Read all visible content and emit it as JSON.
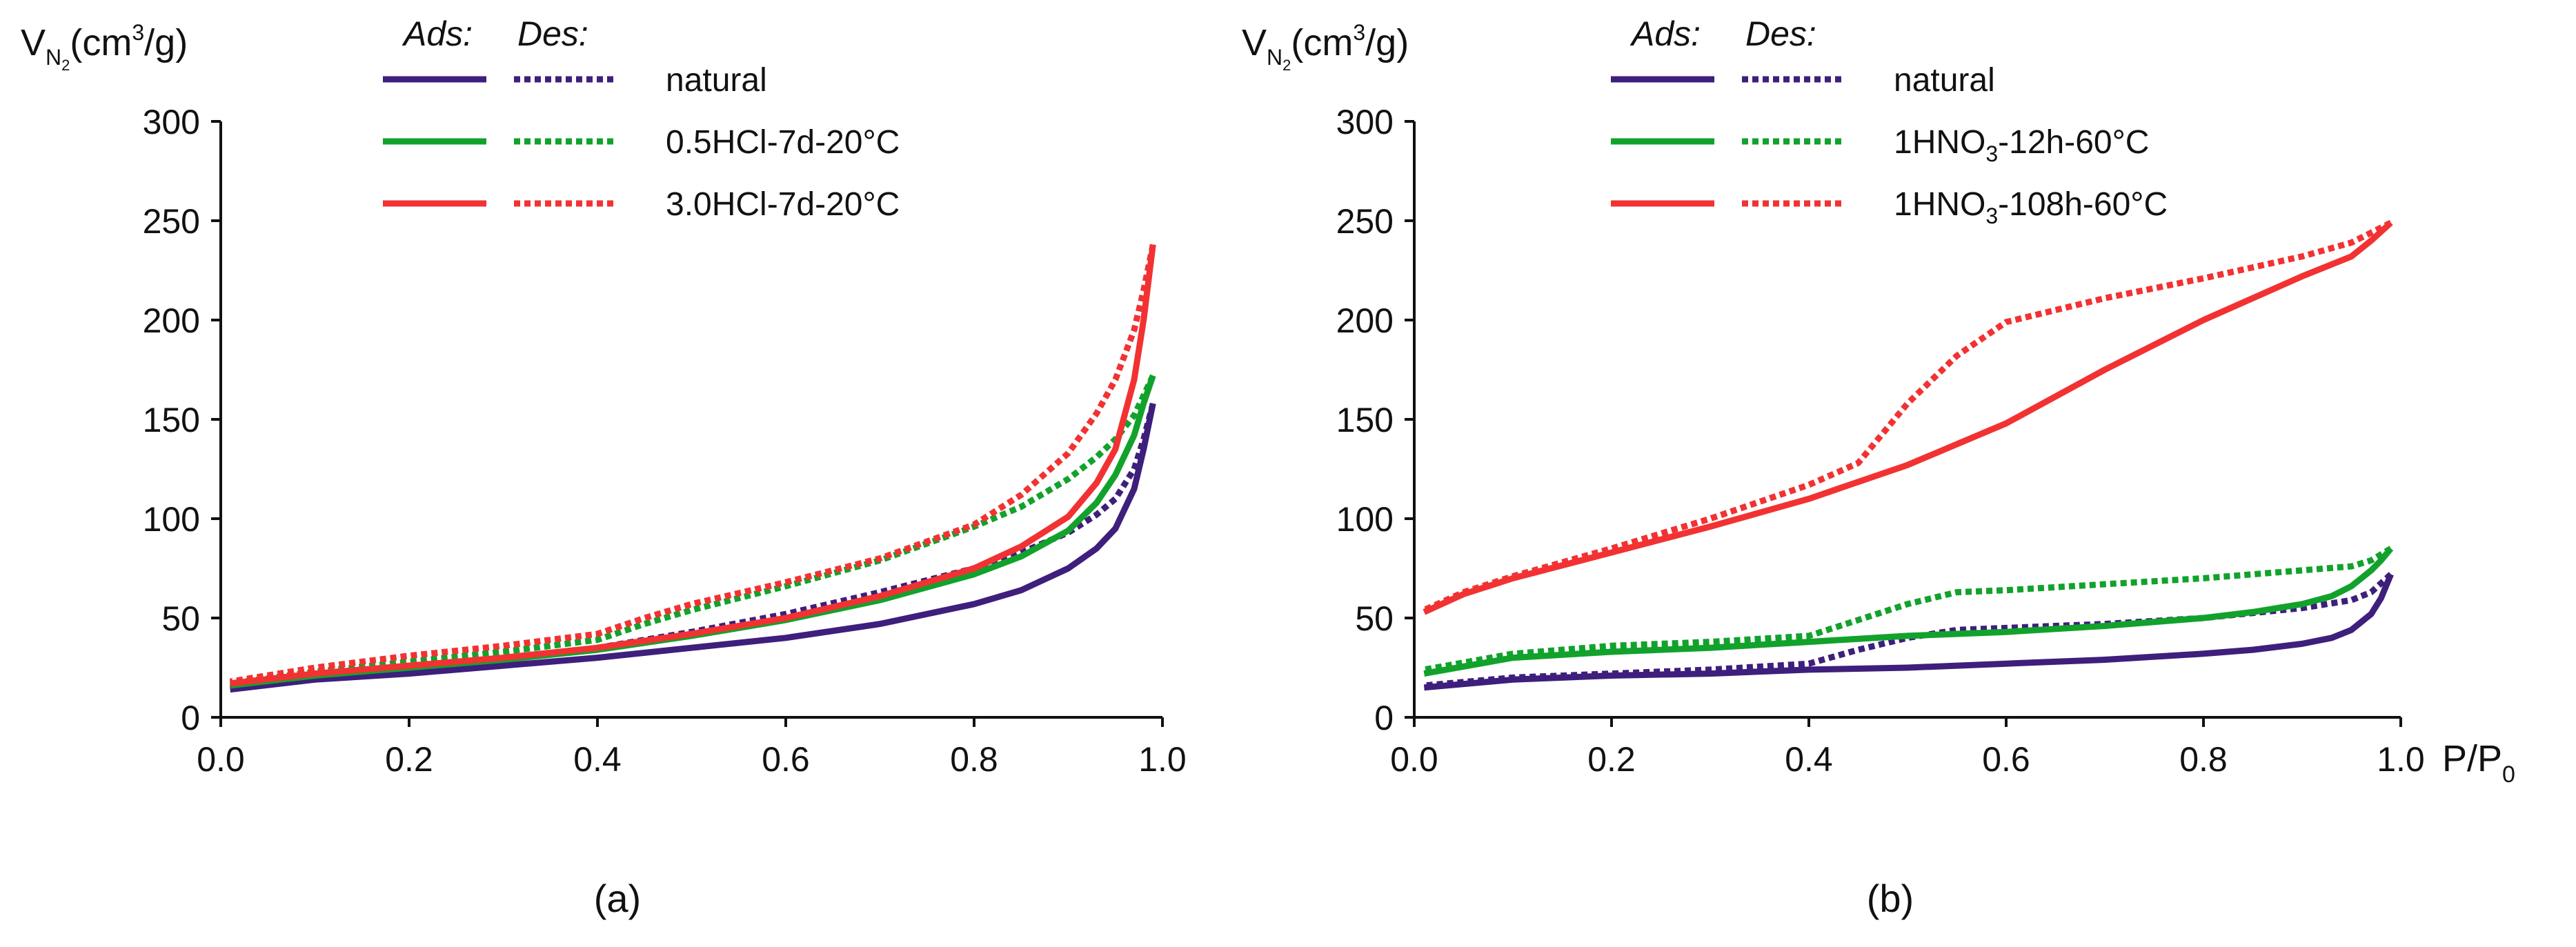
{
  "chart_data": [
    {
      "type": "line",
      "panel_label": "(a)",
      "ylabel": {
        "main": "V",
        "sub": "N",
        "subsub": "2",
        "unit_pre": "(cm",
        "unit_sup": "3",
        "unit_post": "/g)"
      },
      "xlabel": null,
      "xlim": [
        0,
        1
      ],
      "ylim": [
        0,
        300
      ],
      "xticks": [
        "0.0",
        "0.2",
        "0.4",
        "0.6",
        "0.8",
        "1.0"
      ],
      "yticks": [
        "0",
        "50",
        "100",
        "150",
        "200",
        "250",
        "300"
      ],
      "grid": false,
      "legend": {
        "placement": "top-center",
        "ads_header": "Ads:",
        "des_header": "Des:",
        "entries": [
          {
            "label": "natural",
            "color": "#3e1f7c"
          },
          {
            "label": "0.5HCl-7d-20°C",
            "color": "#12a22c"
          },
          {
            "label": "3.0HCl-7d-20°C",
            "color": "#f23232"
          }
        ]
      },
      "series": [
        {
          "name": "natural",
          "branch": "adsorption",
          "color": "#3e1f7c",
          "x": [
            0.01,
            0.1,
            0.2,
            0.3,
            0.4,
            0.5,
            0.6,
            0.7,
            0.8,
            0.85,
            0.9,
            0.93,
            0.95,
            0.97,
            0.98,
            0.99
          ],
          "y": [
            14,
            19,
            22,
            26,
            30,
            35,
            40,
            47,
            57,
            64,
            75,
            85,
            95,
            115,
            135,
            158
          ]
        },
        {
          "name": "natural",
          "branch": "desorption",
          "color": "#3e1f7c",
          "x": [
            0.99,
            0.98,
            0.97,
            0.95,
            0.93,
            0.9,
            0.85,
            0.8,
            0.7,
            0.6,
            0.5,
            0.4,
            0.3,
            0.2,
            0.1,
            0.01
          ],
          "y": [
            158,
            140,
            125,
            110,
            102,
            93,
            83,
            75,
            63,
            52,
            43,
            35,
            29,
            24,
            20,
            15
          ]
        },
        {
          "name": "0.5HCl-7d-20°C",
          "branch": "adsorption",
          "color": "#12a22c",
          "x": [
            0.01,
            0.1,
            0.2,
            0.3,
            0.4,
            0.5,
            0.6,
            0.7,
            0.8,
            0.85,
            0.9,
            0.93,
            0.95,
            0.97,
            0.98,
            0.99
          ],
          "y": [
            16,
            21,
            25,
            29,
            34,
            41,
            49,
            59,
            72,
            81,
            94,
            108,
            122,
            142,
            158,
            172
          ]
        },
        {
          "name": "0.5HCl-7d-20°C",
          "branch": "desorption",
          "color": "#12a22c",
          "x": [
            0.99,
            0.98,
            0.97,
            0.95,
            0.93,
            0.9,
            0.85,
            0.8,
            0.7,
            0.6,
            0.5,
            0.45,
            0.4,
            0.3,
            0.2,
            0.1,
            0.01
          ],
          "y": [
            172,
            162,
            152,
            140,
            131,
            120,
            106,
            96,
            79,
            66,
            54,
            47,
            39,
            33,
            28,
            23,
            17
          ]
        },
        {
          "name": "3.0HCl-7d-20°C",
          "branch": "adsorption",
          "color": "#f23232",
          "x": [
            0.01,
            0.1,
            0.2,
            0.3,
            0.4,
            0.5,
            0.6,
            0.7,
            0.8,
            0.85,
            0.9,
            0.93,
            0.95,
            0.97,
            0.98,
            0.99
          ],
          "y": [
            17,
            22,
            26,
            30,
            35,
            42,
            50,
            61,
            75,
            86,
            101,
            118,
            135,
            170,
            200,
            238
          ]
        },
        {
          "name": "3.0HCl-7d-20°C",
          "branch": "desorption",
          "color": "#f23232",
          "x": [
            0.99,
            0.98,
            0.97,
            0.95,
            0.93,
            0.9,
            0.85,
            0.8,
            0.7,
            0.6,
            0.5,
            0.45,
            0.4,
            0.3,
            0.2,
            0.1,
            0.01
          ],
          "y": [
            238,
            215,
            195,
            170,
            153,
            133,
            112,
            97,
            80,
            68,
            57,
            50,
            42,
            36,
            31,
            25,
            18
          ]
        }
      ]
    },
    {
      "type": "line",
      "panel_label": "(b)",
      "ylabel": {
        "main": "V",
        "sub": "N",
        "subsub": "2",
        "unit_pre": "(cm",
        "unit_sup": "3",
        "unit_post": "/g)"
      },
      "xlabel": {
        "main": "P/P",
        "sub": "0"
      },
      "xlim": [
        0,
        1
      ],
      "ylim": [
        0,
        300
      ],
      "xticks": [
        "0.0",
        "0.2",
        "0.4",
        "0.6",
        "0.8",
        "1.0"
      ],
      "yticks": [
        "0",
        "50",
        "100",
        "150",
        "200",
        "250",
        "300"
      ],
      "grid": false,
      "legend": {
        "placement": "top-center",
        "ads_header": "Ads:",
        "des_header": "Des:",
        "entries": [
          {
            "label": "natural",
            "label_sub": "",
            "label_post": "",
            "color": "#3e1f7c"
          },
          {
            "label": "1HNO",
            "label_sub": "3",
            "label_post": "-12h-60°C",
            "color": "#12a22c"
          },
          {
            "label": "1HNO",
            "label_sub": "3",
            "label_post": "-108h-60°C",
            "color": "#f23232"
          }
        ]
      },
      "series": [
        {
          "name": "natural",
          "branch": "adsorption",
          "color": "#3e1f7c",
          "x": [
            0.01,
            0.1,
            0.2,
            0.3,
            0.4,
            0.5,
            0.6,
            0.7,
            0.8,
            0.85,
            0.9,
            0.93,
            0.95,
            0.97,
            0.98,
            0.99
          ],
          "y": [
            15,
            19,
            21,
            22,
            24,
            25,
            27,
            29,
            32,
            34,
            37,
            40,
            44,
            52,
            60,
            72
          ]
        },
        {
          "name": "natural",
          "branch": "desorption",
          "color": "#3e1f7c",
          "x": [
            0.99,
            0.97,
            0.95,
            0.9,
            0.8,
            0.7,
            0.6,
            0.55,
            0.5,
            0.45,
            0.4,
            0.3,
            0.2,
            0.1,
            0.01
          ],
          "y": [
            72,
            63,
            59,
            55,
            50,
            47,
            45,
            44,
            40,
            34,
            27,
            24,
            22,
            20,
            16
          ]
        },
        {
          "name": "1HNO3-12h-60°C",
          "branch": "adsorption",
          "color": "#12a22c",
          "x": [
            0.01,
            0.1,
            0.2,
            0.3,
            0.4,
            0.5,
            0.6,
            0.7,
            0.8,
            0.85,
            0.9,
            0.93,
            0.95,
            0.97,
            0.98,
            0.99
          ],
          "y": [
            22,
            30,
            33,
            35,
            38,
            41,
            43,
            46,
            50,
            53,
            57,
            61,
            66,
            74,
            79,
            85
          ]
        },
        {
          "name": "1HNO3-12h-60°C",
          "branch": "desorption",
          "color": "#12a22c",
          "x": [
            0.99,
            0.97,
            0.95,
            0.9,
            0.8,
            0.7,
            0.6,
            0.55,
            0.5,
            0.45,
            0.4,
            0.3,
            0.2,
            0.1,
            0.01
          ],
          "y": [
            85,
            79,
            76,
            74,
            70,
            67,
            64,
            63,
            57,
            49,
            41,
            38,
            36,
            32,
            24
          ]
        },
        {
          "name": "1HNO3-108h-60°C",
          "branch": "adsorption",
          "color": "#f23232",
          "x": [
            0.01,
            0.05,
            0.1,
            0.2,
            0.3,
            0.4,
            0.5,
            0.6,
            0.7,
            0.8,
            0.9,
            0.95,
            0.97,
            0.99
          ],
          "y": [
            53,
            62,
            70,
            83,
            96,
            110,
            127,
            148,
            175,
            200,
            222,
            232,
            240,
            249
          ]
        },
        {
          "name": "1HNO3-108h-60°C",
          "branch": "desorption",
          "color": "#f23232",
          "x": [
            0.99,
            0.95,
            0.9,
            0.8,
            0.7,
            0.6,
            0.55,
            0.5,
            0.45,
            0.4,
            0.3,
            0.2,
            0.1,
            0.05,
            0.01
          ],
          "y": [
            249,
            239,
            232,
            221,
            211,
            199,
            182,
            158,
            128,
            117,
            100,
            85,
            71,
            63,
            54
          ]
        }
      ]
    }
  ]
}
